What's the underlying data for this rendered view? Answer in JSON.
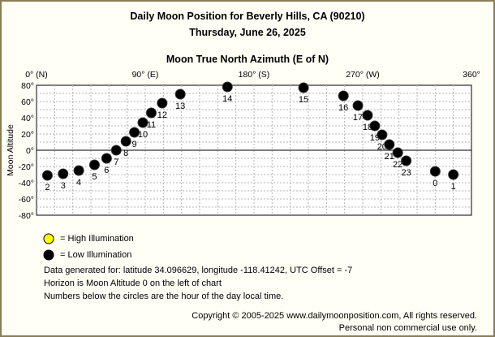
{
  "header": {
    "title": "Daily Moon Position for Beverly Hills, CA (90210)",
    "date": "Thursday, June 26, 2025"
  },
  "chart_data": {
    "type": "scatter",
    "title": "Moon True North Azimuth (E of N)",
    "ylabel": "Moon Altitude",
    "xlim": [
      0,
      360
    ],
    "ylim": [
      -80,
      80
    ],
    "x_tick_labels": [
      {
        "value": 0,
        "label": "0° (N)"
      },
      {
        "value": 90,
        "label": "90° (E)"
      },
      {
        "value": 180,
        "label": "180° (S)"
      },
      {
        "value": 270,
        "label": "270° (W)"
      },
      {
        "value": 360,
        "label": "360°"
      }
    ],
    "y_tick_labels": [
      {
        "value": 80,
        "label": "80°"
      },
      {
        "value": 60,
        "label": "60°"
      },
      {
        "value": 40,
        "label": "40°"
      },
      {
        "value": 20,
        "label": "20°"
      },
      {
        "value": 0,
        "label": "0°"
      },
      {
        "value": -20,
        "label": "-20°"
      },
      {
        "value": -40,
        "label": "-40°"
      },
      {
        "value": -60,
        "label": "-60°"
      },
      {
        "value": -80,
        "label": "-80°"
      }
    ],
    "grid": true,
    "horizon_altitude": 0,
    "series": [
      {
        "name": "Low Illumination",
        "color": "#000000",
        "points": [
          {
            "hour": "0",
            "az": 330,
            "alt": -26
          },
          {
            "hour": "1",
            "az": 345,
            "alt": -30
          },
          {
            "hour": "2",
            "az": 9,
            "alt": -31
          },
          {
            "hour": "3",
            "az": 22,
            "alt": -29
          },
          {
            "hour": "4",
            "az": 35,
            "alt": -25
          },
          {
            "hour": "5",
            "az": 48,
            "alt": -18
          },
          {
            "hour": "6",
            "az": 58,
            "alt": -10
          },
          {
            "hour": "7",
            "az": 66,
            "alt": 0
          },
          {
            "hour": "8",
            "az": 74,
            "alt": 11
          },
          {
            "hour": "9",
            "az": 81,
            "alt": 22
          },
          {
            "hour": "10",
            "az": 88,
            "alt": 34
          },
          {
            "hour": "11",
            "az": 95,
            "alt": 46
          },
          {
            "hour": "12",
            "az": 104,
            "alt": 58
          },
          {
            "hour": "13",
            "az": 119,
            "alt": 69
          },
          {
            "hour": "14",
            "az": 158,
            "alt": 78
          },
          {
            "hour": "15",
            "az": 221,
            "alt": 77
          },
          {
            "hour": "16",
            "az": 254,
            "alt": 67
          },
          {
            "hour": "17",
            "az": 266,
            "alt": 55
          },
          {
            "hour": "18",
            "az": 274,
            "alt": 43
          },
          {
            "hour": "19",
            "az": 280,
            "alt": 30
          },
          {
            "hour": "20",
            "az": 286,
            "alt": 19
          },
          {
            "hour": "21",
            "az": 292,
            "alt": 7
          },
          {
            "hour": "22",
            "az": 299,
            "alt": -3
          },
          {
            "hour": "23",
            "az": 306,
            "alt": -13
          }
        ]
      }
    ]
  },
  "legend": {
    "high_label": "= High Illumination",
    "high_color": "#ffff00",
    "low_label": "= Low Illumination",
    "low_color": "#000000"
  },
  "notes": {
    "line1": "Data generated for: latitude 34.096629, longitude -118.41242, UTC Offset = -7",
    "line2": "Horizon is Moon Altitude 0 on the left of chart",
    "line3": "Numbers below the circles are the hour of the day local time."
  },
  "footer": {
    "copyright": "Copyright © 2005-2025 www.dailymoonposition.com, All rights reserved.",
    "personal": "Personal non commercial use only."
  }
}
